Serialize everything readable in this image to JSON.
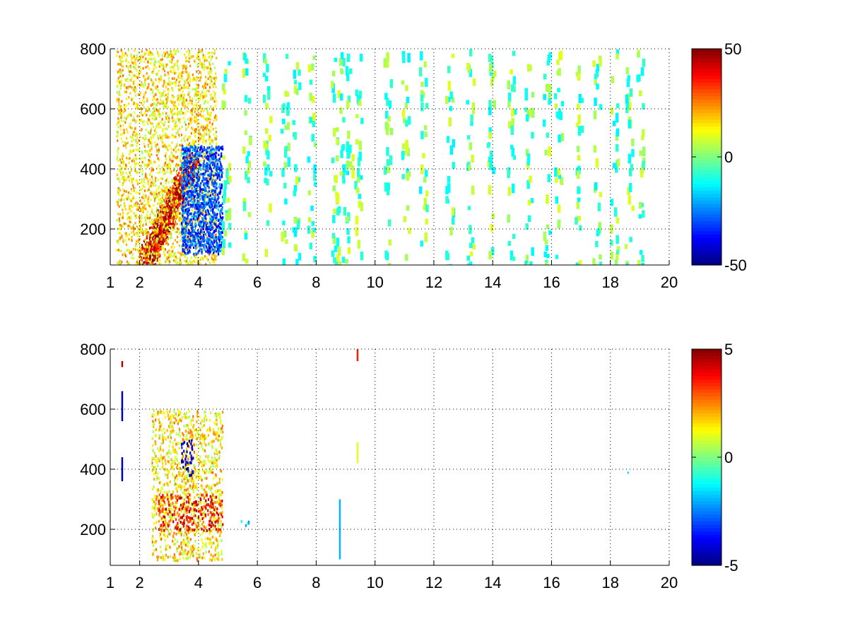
{
  "chart_data": [
    {
      "type": "heatmap",
      "title": "",
      "xlabel": "",
      "ylabel": "",
      "xlim": [
        1,
        20
      ],
      "ylim": [
        80,
        800
      ],
      "x_ticks": [
        1,
        2,
        4,
        6,
        8,
        10,
        12,
        14,
        16,
        18,
        20
      ],
      "x_tick_labels": [
        "1",
        "2",
        "4",
        "6",
        "8",
        "10",
        "12",
        "14",
        "16",
        "18",
        "20"
      ],
      "y_ticks": [
        200,
        400,
        600,
        800
      ],
      "y_tick_labels": [
        "200",
        "400",
        "600",
        "800"
      ],
      "grid": "dotted",
      "colormap": "jet",
      "clim": [
        -50,
        50
      ],
      "colorbar_ticks": [
        50,
        0,
        -50
      ],
      "colorbar_tick_labels": [
        "50",
        "0",
        "-50"
      ],
      "features": [
        {
          "x": [
            2.2,
            3.8
          ],
          "y": [
            100,
            430
          ],
          "level": 42,
          "kind": "diagonal-ridge"
        },
        {
          "x": [
            1.2,
            4.6
          ],
          "y": [
            80,
            800
          ],
          "level": 15,
          "kind": "dense-band"
        },
        {
          "x": [
            3.4,
            4.8
          ],
          "y": [
            120,
            480
          ],
          "level": -30,
          "kind": "patch"
        },
        {
          "x": [
            4.8,
            20
          ],
          "y": [
            80,
            800
          ],
          "level": -8,
          "kind": "sparse-stripes"
        }
      ],
      "stripe_columns": [
        4.9,
        5.6,
        6.3,
        6.9,
        7.3,
        7.8,
        8.6,
        8.8,
        9.1,
        9.4,
        10.4,
        11.0,
        11.6,
        12.5,
        13.2,
        13.9,
        14.6,
        15.2,
        15.8,
        16.2,
        16.9,
        17.5,
        18.1,
        18.6,
        19.0
      ]
    },
    {
      "type": "heatmap",
      "title": "",
      "xlabel": "",
      "ylabel": "",
      "xlim": [
        1,
        20
      ],
      "ylim": [
        80,
        800
      ],
      "x_ticks": [
        1,
        2,
        4,
        6,
        8,
        10,
        12,
        14,
        16,
        18,
        20
      ],
      "x_tick_labels": [
        "1",
        "2",
        "4",
        "6",
        "8",
        "10",
        "12",
        "14",
        "16",
        "18",
        "20"
      ],
      "y_ticks": [
        200,
        400,
        600,
        800
      ],
      "y_tick_labels": [
        "200",
        "400",
        "600",
        "800"
      ],
      "grid": "dotted",
      "colormap": "jet",
      "clim": [
        -5,
        5
      ],
      "colorbar_ticks": [
        5,
        0,
        -5
      ],
      "colorbar_tick_labels": [
        "5",
        "0",
        "-5"
      ],
      "features": [
        {
          "x": [
            2.4,
            4.8
          ],
          "y": [
            100,
            600
          ],
          "level": 1.5,
          "kind": "cluster"
        },
        {
          "x": [
            3.4,
            3.8
          ],
          "y": [
            380,
            500
          ],
          "level": -4.5,
          "kind": "patch"
        },
        {
          "x": [
            2.6,
            4.8
          ],
          "y": [
            200,
            320
          ],
          "level": 3.5,
          "kind": "band"
        },
        {
          "x": [
            5.4,
            5.7
          ],
          "y": [
            215,
            235
          ],
          "level": -1.5,
          "kind": "patch"
        }
      ],
      "line_segments": [
        {
          "x": 1.4,
          "y": [
            560,
            660
          ],
          "level": -4.5
        },
        {
          "x": 1.4,
          "y": [
            360,
            440
          ],
          "level": -4.5
        },
        {
          "x": 1.4,
          "y": [
            740,
            760
          ],
          "level": 4.5
        },
        {
          "x": 8.8,
          "y": [
            100,
            300
          ],
          "level": -2
        },
        {
          "x": 9.4,
          "y": [
            420,
            490
          ],
          "level": 1
        },
        {
          "x": 9.4,
          "y": [
            760,
            800
          ],
          "level": 3.5
        },
        {
          "x": 18.6,
          "y": [
            385,
            392
          ],
          "level": -1.5
        }
      ]
    }
  ]
}
